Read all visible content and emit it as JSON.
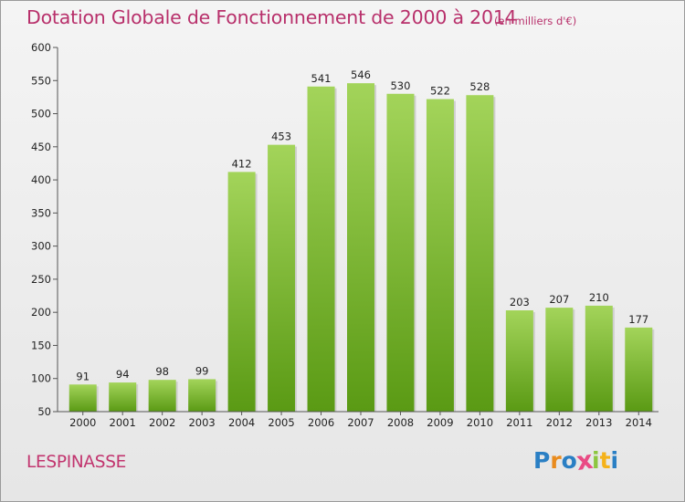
{
  "title": "Dotation Globale de Fonctionnement de 2000 à 2014",
  "unit_note": "(en milliers d'€)",
  "commune": "LESPINASSE",
  "logo": {
    "text": "Proxiti",
    "letters": [
      {
        "ch": "P",
        "color": "#2a7fc4"
      },
      {
        "ch": "r",
        "color": "#e98b1d"
      },
      {
        "ch": "o",
        "color": "#2a7fc4"
      },
      {
        "ch": "x",
        "color": "#e94b84"
      },
      {
        "ch": "i",
        "color": "#8cc63f"
      },
      {
        "ch": "t",
        "color": "#f5b21a"
      },
      {
        "ch": "i",
        "color": "#2a7fc4"
      }
    ]
  },
  "colors": {
    "title": "#b8306b",
    "bar_top": "#a3d45a",
    "bar_bottom": "#5a9a14"
  },
  "chart_data": {
    "type": "bar",
    "categories": [
      "2000",
      "2001",
      "2002",
      "2003",
      "2004",
      "2005",
      "2006",
      "2007",
      "2008",
      "2009",
      "2010",
      "2011",
      "2012",
      "2013",
      "2014"
    ],
    "values": [
      91,
      94,
      98,
      99,
      412,
      453,
      541,
      546,
      530,
      522,
      528,
      203,
      207,
      210,
      177
    ],
    "ylim": [
      50,
      600
    ],
    "yticks": [
      50,
      100,
      150,
      200,
      250,
      300,
      350,
      400,
      450,
      500,
      550,
      600
    ],
    "grid": false,
    "legend": "none"
  }
}
